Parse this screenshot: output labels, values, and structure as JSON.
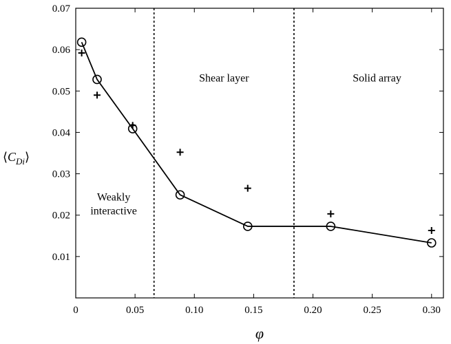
{
  "chart_data": {
    "type": "scatter",
    "xlabel": "φ",
    "ylabel": {
      "pre": "⟨",
      "main": "C",
      "sub": "Di",
      "post": "⟩"
    },
    "xlim": [
      0,
      0.31
    ],
    "ylim": [
      0,
      0.07
    ],
    "x_ticks": [
      {
        "value": 0,
        "label": "0"
      },
      {
        "value": 0.05,
        "label": "0.05"
      },
      {
        "value": 0.1,
        "label": "0.10"
      },
      {
        "value": 0.15,
        "label": "0.15"
      },
      {
        "value": 0.2,
        "label": "0.20"
      },
      {
        "value": 0.25,
        "label": "0.25"
      },
      {
        "value": 0.3,
        "label": "0.30"
      }
    ],
    "y_ticks": [
      {
        "value": 0.01,
        "label": "0.01"
      },
      {
        "value": 0.02,
        "label": "0.02"
      },
      {
        "value": 0.03,
        "label": "0.03"
      },
      {
        "value": 0.04,
        "label": "0.04"
      },
      {
        "value": 0.05,
        "label": "0.05"
      },
      {
        "value": 0.06,
        "label": "0.06"
      },
      {
        "value": 0.07,
        "label": "0.07"
      }
    ],
    "grid": false,
    "series": [
      {
        "marker": "circle",
        "line": "solid",
        "x": [
          0.005,
          0.018,
          0.048,
          0.088,
          0.145,
          0.215,
          0.3
        ],
        "y": [
          0.0618,
          0.0528,
          0.0409,
          0.0249,
          0.0173,
          0.0173,
          0.0133
        ]
      },
      {
        "marker": "plus",
        "line": "none",
        "x": [
          0.005,
          0.018,
          0.048,
          0.088,
          0.145,
          0.215,
          0.3
        ],
        "y": [
          0.0592,
          0.049,
          0.0417,
          0.0352,
          0.0265,
          0.0203,
          0.0163
        ]
      }
    ],
    "vertical_lines": [
      {
        "x": 0.066,
        "style": "dotted"
      },
      {
        "x": 0.184,
        "style": "dotted"
      }
    ],
    "region_labels": [
      {
        "lines": [
          "Weakly",
          "interactive"
        ],
        "x": 0.032,
        "y": 0.0235
      },
      {
        "lines": [
          "Shear layer"
        ],
        "x": 0.125,
        "y": 0.0523
      },
      {
        "lines": [
          "Solid array"
        ],
        "x": 0.254,
        "y": 0.0523
      }
    ],
    "colors": {
      "axis": "#000000",
      "series": "#000000"
    }
  }
}
